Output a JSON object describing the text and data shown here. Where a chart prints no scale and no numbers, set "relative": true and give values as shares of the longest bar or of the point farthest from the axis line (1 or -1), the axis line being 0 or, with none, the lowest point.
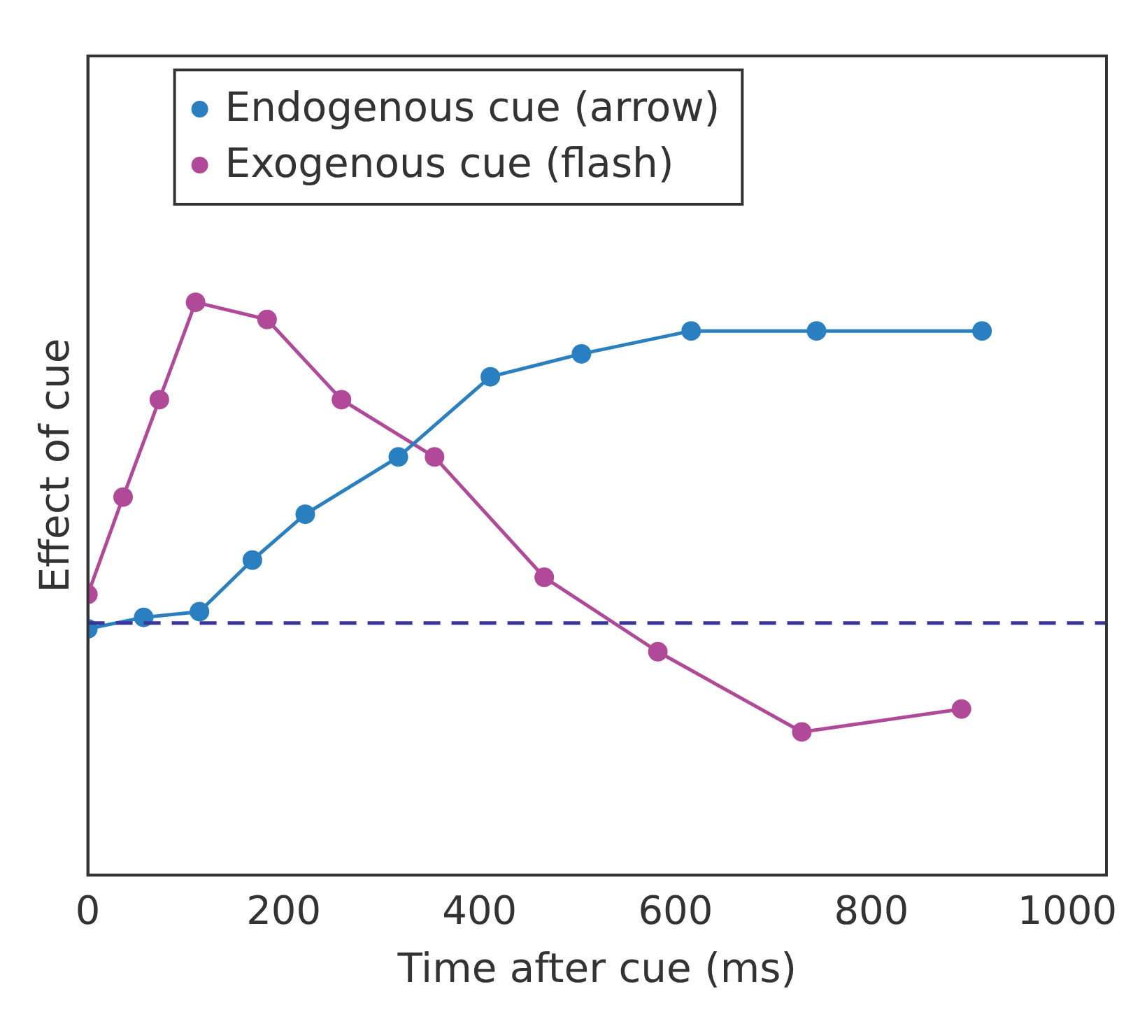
{
  "chart_data": {
    "type": "line",
    "xlabel": "Time after cue (ms)",
    "ylabel": "Effect of cue",
    "relative": true,
    "xlim": [
      0,
      1040
    ],
    "xticks": [
      0,
      200,
      400,
      600,
      800,
      1000
    ],
    "series": [
      {
        "name": "Endogenous cue (arrow)",
        "color": "#2a7fc0",
        "x": [
          0,
          57,
          114,
          168,
          222,
          317,
          411,
          504,
          616,
          744,
          913
        ],
        "values": [
          0.43,
          0.45,
          0.46,
          0.55,
          0.63,
          0.73,
          0.87,
          0.91,
          0.95,
          0.95,
          0.95
        ]
      },
      {
        "name": "Exogenous cue (flash)",
        "color": "#b04a98",
        "x": [
          0,
          36,
          73,
          110,
          183,
          259,
          354,
          466,
          582,
          729,
          892
        ],
        "values": [
          0.49,
          0.66,
          0.83,
          1,
          0.97,
          0.83,
          0.73,
          0.52,
          0.39,
          0.25,
          0.29
        ]
      }
    ],
    "ref_lines": [
      {
        "axis": "y",
        "value": 0.44,
        "color": "#3b3699",
        "line_style": "dashed"
      }
    ],
    "grid": false,
    "legend": "top left",
    "marker": "circle",
    "line_style": "solid"
  }
}
